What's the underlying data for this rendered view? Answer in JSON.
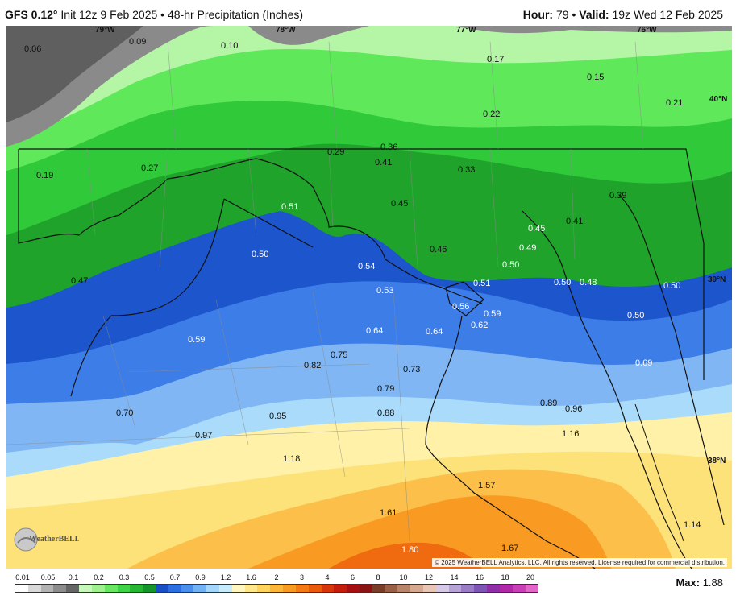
{
  "header": {
    "model": "GFS 0.12°",
    "init": "Init 12z 9 Feb 2025",
    "separator": "•",
    "product": "48-hr Precipitation (Inches)",
    "hour_label": "Hour:",
    "hour_value": "79",
    "valid_label": "Valid:",
    "valid_value": "19z Wed 12 Feb 2025"
  },
  "map": {
    "longitude_labels": [
      "79°W",
      "78°W",
      "77°W",
      "76°W"
    ],
    "latitude_labels": [
      "40°N",
      "39°N",
      "38°N"
    ],
    "values": [
      "0.06",
      "0.09",
      "0.10",
      "0.17",
      "0.15",
      "0.21",
      "0.22",
      "0.19",
      "0.27",
      "0.29",
      "0.36",
      "0.41",
      "0.33",
      "0.39",
      "0.41",
      "0.45",
      "0.45",
      "0.51",
      "0.49",
      "0.46",
      "0.47",
      "0.50",
      "0.54",
      "0.50",
      "0.50",
      "0.51",
      "0.48",
      "0.50",
      "0.53",
      "0.56",
      "0.59",
      "0.50",
      "0.62",
      "0.64",
      "0.64",
      "0.59",
      "0.75",
      "0.69",
      "0.82",
      "0.73",
      "0.79",
      "0.89",
      "0.96",
      "0.70",
      "0.95",
      "0.88",
      "0.97",
      "1.16",
      "1.18",
      "1.57",
      "1.61",
      "1.14",
      "1.80",
      "1.67"
    ],
    "colors": {
      "gray_dark": "#5f5f5f",
      "gray": "#8a8a8a",
      "green_light": "#b4f5a6",
      "green_mid": "#5ee85a",
      "green": "#2fc93a",
      "green_dark": "#1fa32b",
      "blue_dark": "#1d55cc",
      "blue": "#3d7de8",
      "blue_light": "#7fb6f3",
      "cyan_light": "#aadbfa",
      "yellow_light": "#fff2a8",
      "yellow": "#fde27a",
      "orange_light": "#fbbf4a",
      "orange": "#f99a22",
      "orange_dark": "#f06a10"
    }
  },
  "copyright": "© 2025 WeatherBELL Analytics, LLC. All rights reserved. License required for commercial distribution.",
  "logo_text": "WeatherBELL",
  "colorbar": {
    "ticks": [
      "0.01",
      "0.05",
      "0.1",
      "0.2",
      "0.3",
      "0.5",
      "0.7",
      "0.9",
      "1.2",
      "1.6",
      "2",
      "3",
      "4",
      "6",
      "8",
      "10",
      "12",
      "14",
      "16",
      "18",
      "20"
    ],
    "colors": [
      "#ffffff",
      "#d9d9d9",
      "#b3b3b3",
      "#8c8c8c",
      "#666666",
      "#c8f7bd",
      "#a0f08f",
      "#6ae662",
      "#3fd347",
      "#27b634",
      "#15952a",
      "#1a4ec4",
      "#2c6fe0",
      "#4a8fee",
      "#73b2f4",
      "#a3d6fa",
      "#c9ecfc",
      "#fff7bf",
      "#ffe78a",
      "#fdd25d",
      "#fcb73a",
      "#f99a22",
      "#f47a15",
      "#ea5a0e",
      "#d7360b",
      "#c41c0b",
      "#a50f0f",
      "#8a1414",
      "#7a3d2a",
      "#9a6046",
      "#b8846b",
      "#d4a891",
      "#e8c6b6",
      "#d6c9e6",
      "#b8a3d6",
      "#9a7cc6",
      "#7d55b5",
      "#8e2fa8",
      "#b02aa8",
      "#c93fb5",
      "#e066c7"
    ],
    "max_label": "Max:",
    "max_value": "1.88"
  }
}
